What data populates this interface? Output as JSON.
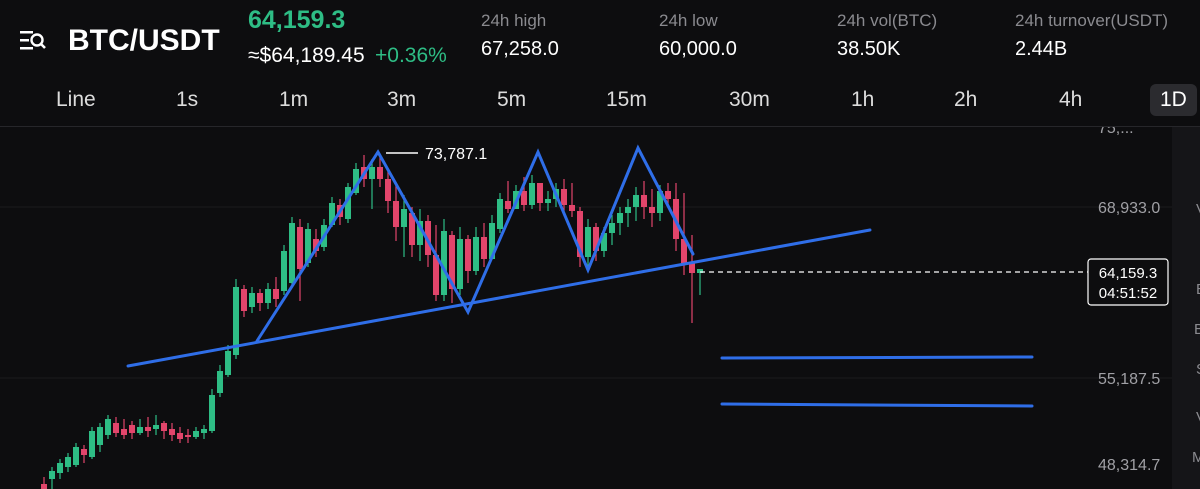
{
  "header": {
    "pair": "BTC/USDT",
    "last_price": "64,159.3",
    "usd_price": "≈$64,189.45",
    "change_pct": "+0.36%",
    "stats": [
      {
        "label": "24h high",
        "value": "67,258.0"
      },
      {
        "label": "24h low",
        "value": "60,000.0"
      },
      {
        "label": "24h vol(BTC)",
        "value": "38.50K"
      },
      {
        "label": "24h turnover(USDT)",
        "value": "2.44B"
      }
    ]
  },
  "timeframes": [
    "Line",
    "1s",
    "1m",
    "3m",
    "5m",
    "15m",
    "30m",
    "1h",
    "2h",
    "4h",
    "1D"
  ],
  "active_timeframe": "1D",
  "chart_data": {
    "type": "candlestick",
    "y_axis_labels": [
      "68,933.0",
      "55,187.5",
      "48,314.7"
    ],
    "y_axis_top_partial": "75,...",
    "ylim": [
      45000,
      77000
    ],
    "current_price": "64,159.3",
    "countdown": "04:51:52",
    "peak_annotation": "73,787.1",
    "peak_value": 73787.1,
    "colors": {
      "up": "#2ebd85",
      "down": "#e2456b",
      "drawing": "#2f6ee8"
    }
  },
  "right_panel": {
    "letters": [
      "V",
      "B",
      "B",
      "S",
      "V",
      "M"
    ]
  }
}
